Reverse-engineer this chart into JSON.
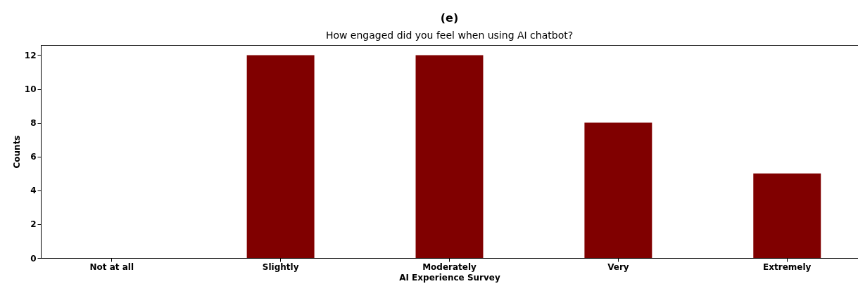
{
  "chart_data": {
    "type": "bar",
    "title": "(e)",
    "subtitle": "How engaged did you feel when using AI chatbot?",
    "xlabel": "AI Experience Survey",
    "ylabel": "Counts",
    "categories": [
      "Not at all",
      "Slightly",
      "Moderately",
      "Very",
      "Extremely"
    ],
    "values": [
      0,
      12,
      12,
      8,
      5
    ],
    "color": "#800000",
    "ylim": [
      0,
      12.6
    ],
    "yticks": [
      0,
      2,
      4,
      6,
      8,
      10,
      12
    ]
  }
}
